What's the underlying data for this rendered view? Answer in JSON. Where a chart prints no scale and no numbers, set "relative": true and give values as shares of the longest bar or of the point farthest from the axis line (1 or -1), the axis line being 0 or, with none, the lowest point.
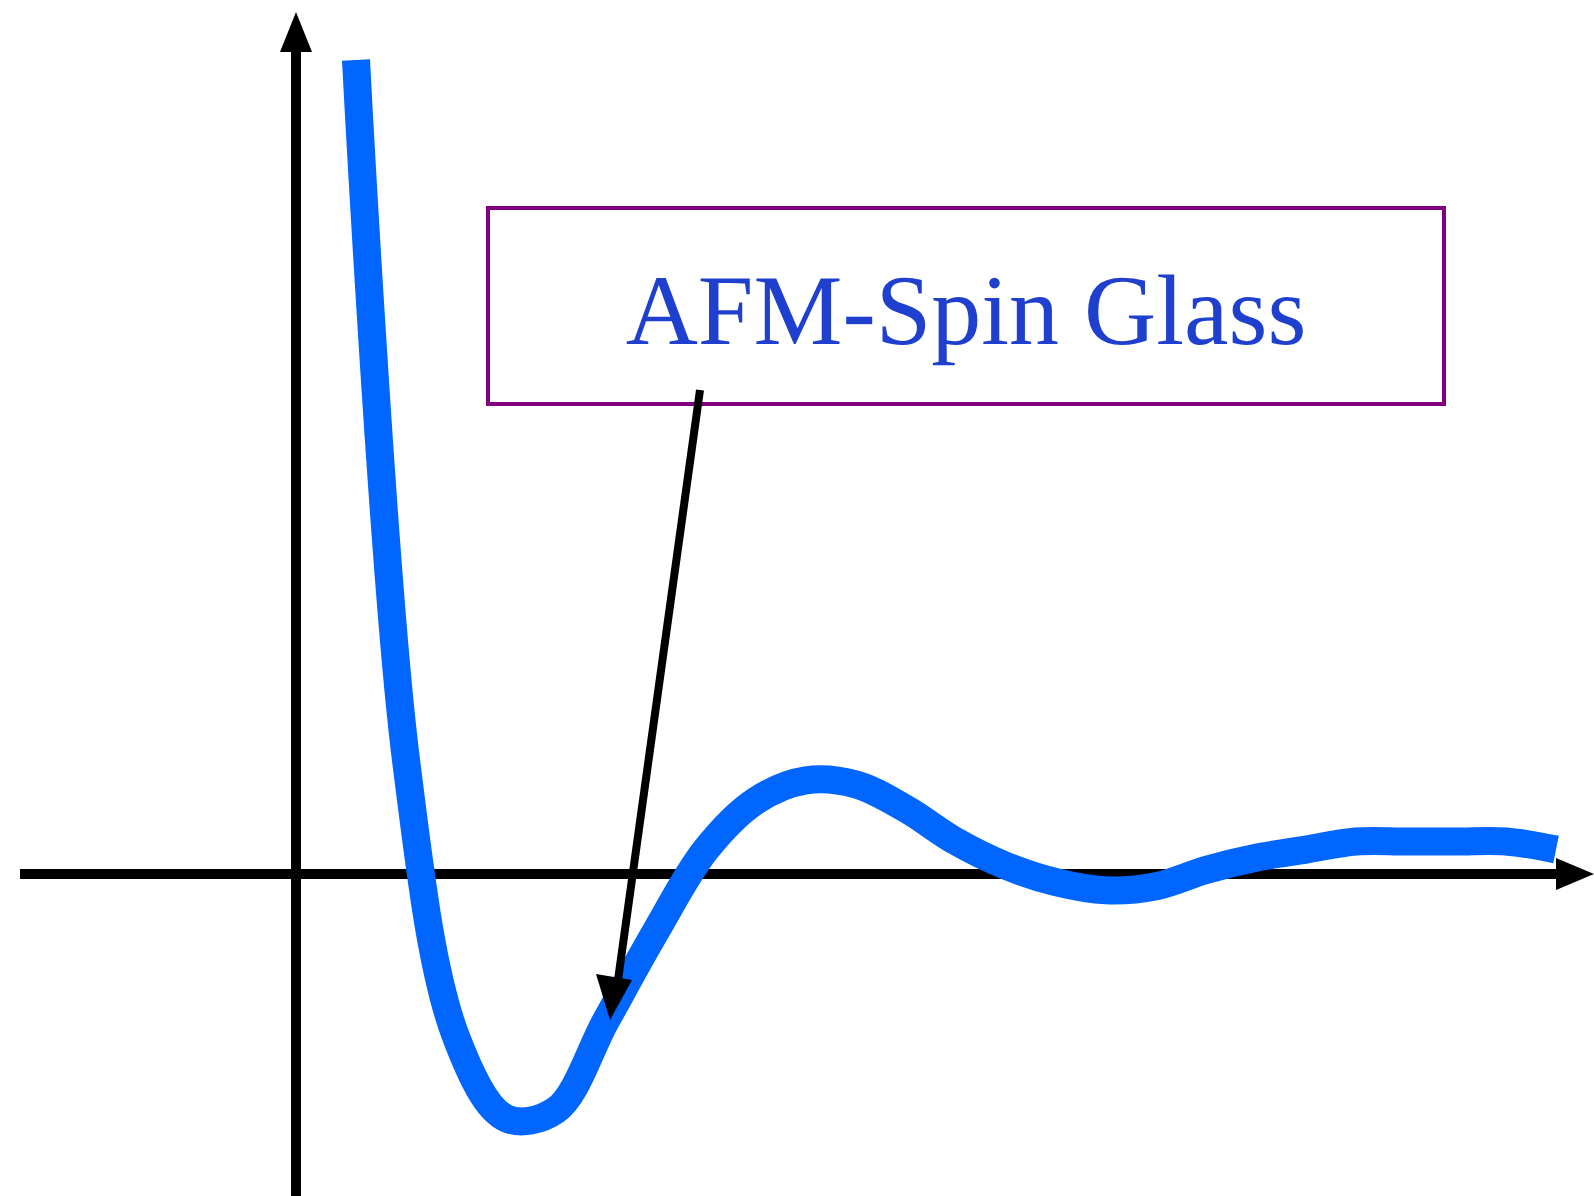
{
  "chart_data": {
    "type": "line",
    "relative": true,
    "categories": [
      null,
      null,
      null,
      null,
      null,
      null,
      null,
      null,
      null,
      null,
      null,
      null,
      null,
      null,
      null,
      null,
      null,
      null,
      null,
      null,
      null,
      null,
      null,
      null,
      null
    ],
    "series": [
      {
        "color": "#0066ff",
        "values": [
          1.0,
          0.14,
          -0.2,
          -0.3,
          -0.29,
          -0.18,
          -0.07,
          0.03,
          0.09,
          0.115,
          0.11,
          0.08,
          0.04,
          0.01,
          -0.01,
          -0.02,
          -0.015,
          0.005,
          0.02,
          0.03,
          0.04,
          0.04,
          0.04,
          0.04,
          0.03
        ]
      }
    ],
    "annotations": [
      "AFM-Spin Glass"
    ],
    "marker": "none",
    "line_style": "solid"
  }
}
